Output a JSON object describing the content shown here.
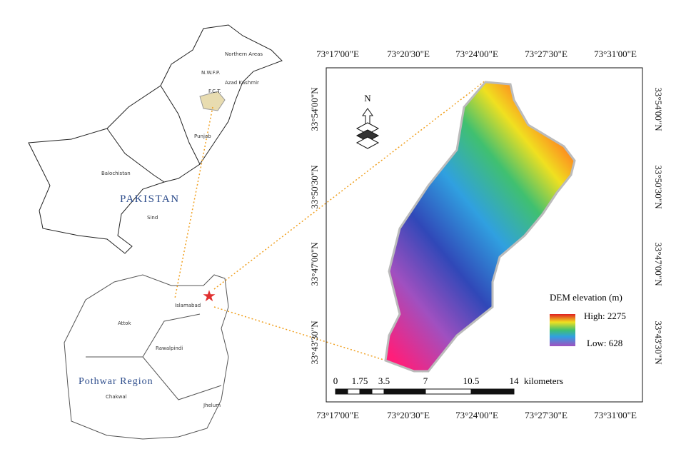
{
  "inset_map": {
    "pakistan_labels": [
      "Northern Areas",
      "N.W.F.P.",
      "Azad Kashmir",
      "F.C.T.",
      "Punjab",
      "Balochistan",
      "PAKISTAN",
      "Sind"
    ],
    "region_labels": [
      "Islamabad",
      "Attok",
      "Rawalpindi",
      "Pothwar Region",
      "Chakwal",
      "Jhelum"
    ]
  },
  "dem_map": {
    "top_axis": [
      "73°17'00\"E",
      "73°20'30\"E",
      "73°24'00\"E",
      "73°27'30\"E",
      "73°31'00\"E"
    ],
    "bottom_axis": [
      "73°17'00\"E",
      "73°20'30\"E",
      "73°24'00\"E",
      "73°27'30\"E",
      "73°31'00\"E"
    ],
    "left_axis": [
      "33°54'00\"N",
      "33°50'30\"N",
      "33°47'00\"N",
      "33°43'30\"N"
    ],
    "right_axis": [
      "33°54'00\"N",
      "33°50'30\"N",
      "33°47'00\"N",
      "33°43'30\"N"
    ],
    "north": "N",
    "legend": {
      "title": "DEM elevation (m)",
      "high": "High: 2275",
      "low": "Low: 628"
    },
    "scale": {
      "labels": [
        "0",
        "1.75",
        "3.5",
        "7",
        "10.5",
        "14"
      ],
      "unit": "kilometers"
    }
  }
}
